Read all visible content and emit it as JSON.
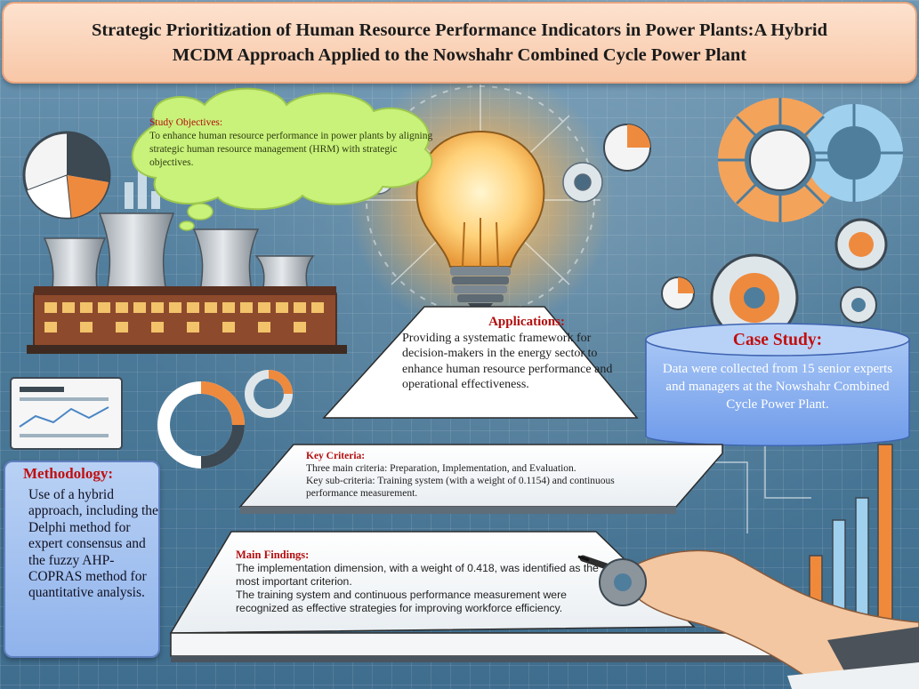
{
  "title": {
    "line1": "Strategic Prioritization of Human Resource Performance Indicators in Power Plants:A Hybrid",
    "line2": "MCDM Approach Applied to the Nowshahr Combined Cycle Power Plant"
  },
  "study_objectives": {
    "heading": "Study Objectives:",
    "body": "To enhance human resource performance in power plants by aligning strategic human resource management (HRM) with strategic objectives."
  },
  "applications": {
    "heading": "Applications:",
    "body": "Providing a systematic framework for decision-makers in the energy sector to enhance human resource performance and operational effectiveness."
  },
  "case_study": {
    "heading": "Case Study:",
    "body": "Data were collected from 15 senior experts and managers at the Nowshahr Combined Cycle Power Plant."
  },
  "key_criteria": {
    "heading": "Key Criteria:",
    "line1": "Three main criteria: Preparation, Implementation, and Evaluation.",
    "line2": "Key sub-criteria: Training system (with a weight of 0.1154) and continuous performance measurement."
  },
  "main_findings": {
    "heading": "Main Findings:",
    "line1": "The implementation dimension, with a weight of 0.418, was identified as the most important criterion.",
    "line2": "The training system and continuous performance measurement were recognized as effective strategies for improving workforce efficiency."
  },
  "methodology": {
    "heading": "Methodology:",
    "body": "Use of a hybrid approach, including the Delphi method for expert consensus and the fuzzy AHP-COPRAS method for quantitative analysis."
  },
  "colors": {
    "heading_red": "#c10f0f",
    "banner": "#f8c7a7",
    "cloud": "#c9f27a",
    "case_study_box": "#7aa6ee",
    "methodology_box": "#a9c4f2"
  }
}
